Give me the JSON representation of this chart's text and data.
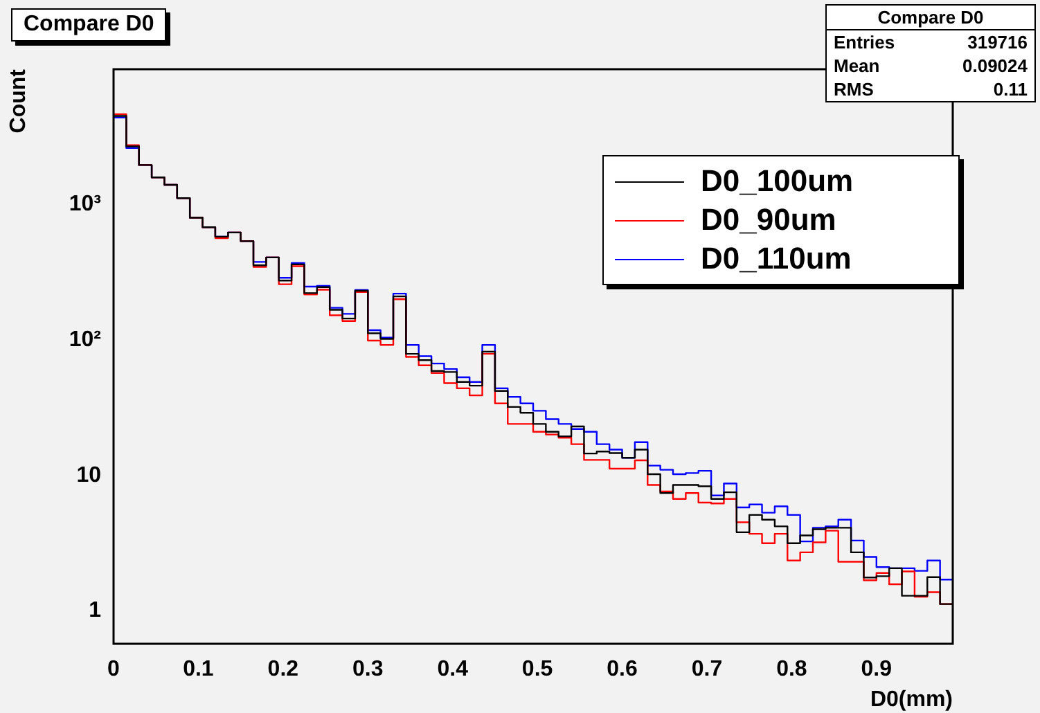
{
  "chart_data": {
    "type": "histogram",
    "title": "Compare D0",
    "xlabel": "D0(mm)",
    "ylabel": "Count",
    "bins": [
      0,
      0.015,
      0.03,
      0.045,
      0.06,
      0.075,
      0.09,
      0.105,
      0.12,
      0.135,
      0.15,
      0.165,
      0.18,
      0.195,
      0.21,
      0.225,
      0.24,
      0.255,
      0.27,
      0.285,
      0.3,
      0.315,
      0.33,
      0.345,
      0.36,
      0.375,
      0.39,
      0.405,
      0.42,
      0.435,
      0.45,
      0.465,
      0.48,
      0.495,
      0.51,
      0.525,
      0.54,
      0.555,
      0.57,
      0.585,
      0.6,
      0.615,
      0.63,
      0.645,
      0.66,
      0.675,
      0.69,
      0.705,
      0.72,
      0.735,
      0.75,
      0.765,
      0.78,
      0.795,
      0.81,
      0.825,
      0.84,
      0.855,
      0.87,
      0.885,
      0.9,
      0.915,
      0.93,
      0.945,
      0.96,
      0.975,
      0.99
    ],
    "series": [
      {
        "name": "D0_100um",
        "color": "#000000",
        "values": [
          4520,
          2690,
          1960,
          1590,
          1400,
          1115,
          800,
          680,
          580,
          622,
          537,
          356,
          407,
          275,
          362,
          222,
          246,
          167,
          144,
          231,
          112,
          102,
          210,
          79,
          71,
          59,
          58,
          49,
          46,
          82,
          42,
          32,
          29,
          24,
          21,
          19.4,
          23,
          14.5,
          15,
          14.6,
          13.5,
          15.5,
          10.2,
          7.4,
          8.5,
          8.5,
          8.3,
          6.7,
          7.5,
          3.8,
          5.1,
          4.7,
          4.2,
          3.15,
          3.6,
          4.0,
          4.1,
          4.1,
          2.7,
          1.76,
          1.8,
          2.06,
          1.29,
          1.29,
          1.77,
          1.12
        ]
      },
      {
        "name": "D0_90um",
        "color": "#ff0000",
        "values": [
          4660,
          2750,
          1960,
          1590,
          1400,
          1115,
          800,
          680,
          565,
          622,
          537,
          347,
          407,
          258,
          351,
          217,
          235,
          152,
          138,
          226,
          99,
          92,
          200,
          75,
          65,
          57,
          48,
          44,
          39,
          79,
          34,
          24,
          24,
          21,
          20,
          19,
          17,
          13,
          13,
          11.2,
          11.2,
          12.9,
          8.5,
          7.6,
          6.7,
          7.4,
          6.3,
          6.2,
          6.7,
          4.5,
          3.7,
          3.15,
          3.7,
          2.35,
          2.7,
          3.2,
          3.9,
          2.3,
          2.3,
          1.68,
          1.9,
          1.57,
          1.95,
          1.27,
          1.37,
          1.12
        ]
      },
      {
        "name": "D0_110um",
        "color": "#0000ff",
        "values": [
          4400,
          2620,
          1960,
          1590,
          1400,
          1115,
          800,
          680,
          580,
          622,
          537,
          377,
          407,
          288,
          370,
          248,
          251,
          173,
          156,
          234,
          118,
          104,
          220,
          92,
          76,
          67,
          61,
          53,
          49,
          92,
          44,
          38,
          34,
          30,
          26,
          24,
          22,
          21,
          17,
          15.5,
          13.5,
          17.6,
          11.8,
          11,
          10.2,
          10.4,
          10.8,
          7.1,
          8.7,
          5.8,
          6.1,
          5.3,
          5.9,
          5.1,
          3.25,
          4.1,
          4.2,
          4.7,
          3.3,
          2.5,
          2.1,
          2.06,
          2.06,
          1.97,
          2.35,
          1.7
        ]
      }
    ],
    "xlim": [
      0,
      0.99
    ],
    "xticks": [
      0,
      0.1,
      0.2,
      0.3,
      0.4,
      0.5,
      0.6,
      0.7,
      0.8,
      0.9
    ],
    "ylim": [
      0.57,
      10000
    ],
    "yticks": [
      1,
      10,
      {
        "value": 100,
        "label": "10²"
      },
      {
        "value": 1000,
        "label": "10³"
      }
    ],
    "log": "y",
    "grid": false,
    "legend": "top right",
    "annotations": [
      "Compare D0",
      "Entries",
      "319716",
      "Mean",
      "0.09024",
      "RMS",
      "0.11"
    ]
  }
}
